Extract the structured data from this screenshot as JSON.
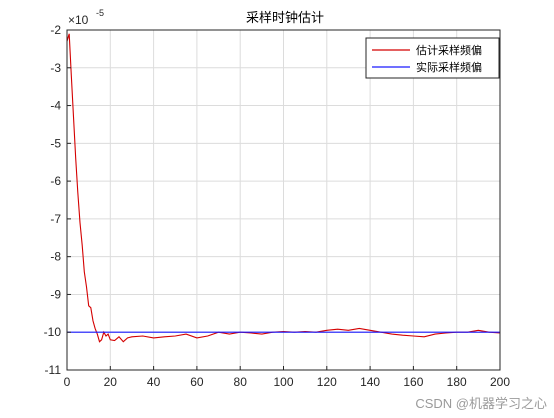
{
  "watermark": "CSDN @机器学习之心",
  "colors": {
    "estimated": "#d40000",
    "actual": "#1a1aff",
    "grid": "#dcdcdc",
    "axis": "#262626"
  },
  "chart_data": {
    "type": "line",
    "title": "采样时钟估计",
    "xlabel": "",
    "ylabel": "",
    "xlim": [
      0,
      200
    ],
    "ylim": [
      -11,
      -2
    ],
    "y_exponent_label": "×10",
    "y_exponent": "-5",
    "xticks": [
      0,
      20,
      40,
      60,
      80,
      100,
      120,
      140,
      160,
      180,
      200
    ],
    "yticks": [
      -2,
      -3,
      -4,
      -5,
      -6,
      -7,
      -8,
      -9,
      -10,
      -11
    ],
    "grid": true,
    "legend_position": "top-right",
    "series": [
      {
        "name": "估计采样频偏",
        "color": "#d40000",
        "x": [
          0,
          1,
          2,
          3,
          4,
          5,
          6,
          7,
          8,
          9,
          10,
          11,
          12,
          13,
          14,
          15,
          16,
          17,
          18,
          19,
          20,
          22,
          24,
          26,
          28,
          30,
          35,
          40,
          45,
          50,
          55,
          60,
          65,
          70,
          75,
          80,
          85,
          90,
          95,
          100,
          105,
          110,
          115,
          120,
          125,
          130,
          135,
          140,
          145,
          150,
          155,
          160,
          165,
          170,
          175,
          180,
          185,
          190,
          195,
          200
        ],
        "y": [
          -2.3,
          -2.1,
          -3.2,
          -4.3,
          -5.4,
          -6.3,
          -7.1,
          -7.7,
          -8.4,
          -8.8,
          -9.3,
          -9.35,
          -9.7,
          -9.9,
          -10.05,
          -10.25,
          -10.2,
          -10.0,
          -10.1,
          -10.05,
          -10.2,
          -10.22,
          -10.12,
          -10.25,
          -10.15,
          -10.12,
          -10.1,
          -10.15,
          -10.12,
          -10.1,
          -10.05,
          -10.15,
          -10.1,
          -10.0,
          -10.05,
          -10.0,
          -10.02,
          -10.05,
          -10.0,
          -9.98,
          -10.0,
          -9.98,
          -10.0,
          -9.95,
          -9.92,
          -9.95,
          -9.9,
          -9.95,
          -10.0,
          -10.05,
          -10.08,
          -10.1,
          -10.12,
          -10.05,
          -10.02,
          -10.0,
          -10.0,
          -9.95,
          -10.0,
          -10.02
        ]
      },
      {
        "name": "实际采样频偏",
        "color": "#1a1aff",
        "x": [
          0,
          200
        ],
        "y": [
          -10,
          -10
        ]
      }
    ]
  }
}
